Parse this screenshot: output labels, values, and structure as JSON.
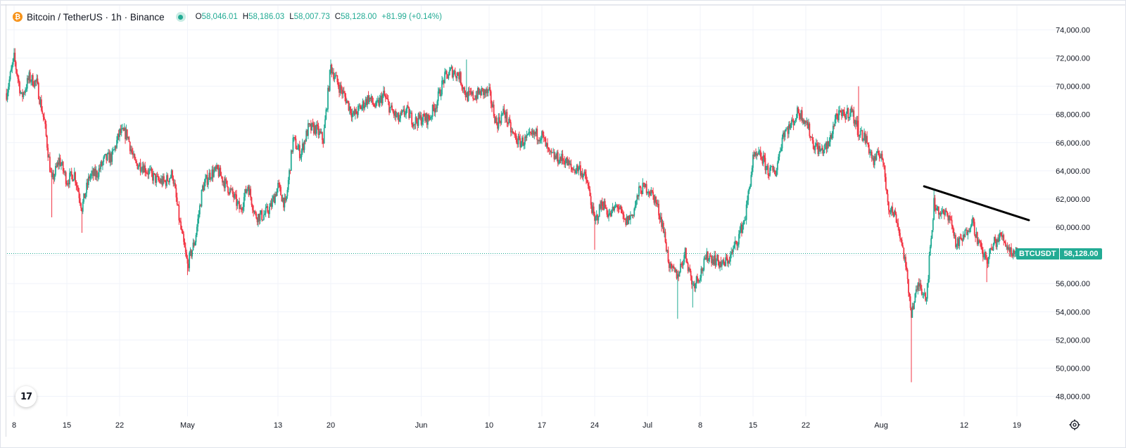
{
  "header": {
    "symbol": "Bitcoin / TetherUS · 1h · Binance",
    "coin_glyph": "₿",
    "ohlc": {
      "open_label": "O",
      "open": "58,046.01",
      "high_label": "H",
      "high": "58,186.03",
      "low_label": "L",
      "low": "58,007.73",
      "close_label": "C",
      "close": "58,128.00",
      "change": "+81.99 (+0.14%)"
    }
  },
  "price_tag": {
    "name": "BTCUSDT",
    "value": "58,128.00"
  },
  "colors": {
    "up": "#22ab94",
    "down": "#f23645",
    "accent": "#22ab94",
    "grid": "#f0f3fa"
  },
  "icons": {
    "logo": "tradingview-logo-icon",
    "settings": "settings-gear-icon",
    "coin": "bitcoin-icon"
  },
  "logo_text": "17",
  "chart_data": {
    "type": "candlestick",
    "title": "Bitcoin / TetherUS · 1h · Binance",
    "ylim": [
      47000,
      75000
    ],
    "y_ticks": [
      {
        "value": 74000,
        "label": "74,000.00"
      },
      {
        "value": 72000,
        "label": "72,000.00"
      },
      {
        "value": 70000,
        "label": "70,000.00"
      },
      {
        "value": 68000,
        "label": "68,000.00"
      },
      {
        "value": 66000,
        "label": "66,000.00"
      },
      {
        "value": 64000,
        "label": "64,000.00"
      },
      {
        "value": 62000,
        "label": "62,000.00"
      },
      {
        "value": 60000,
        "label": "60,000.00"
      },
      {
        "value": 58000,
        "label": "58,000.00"
      },
      {
        "value": 56000,
        "label": "56,000.00"
      },
      {
        "value": 54000,
        "label": "54,000.00"
      },
      {
        "value": 52000,
        "label": "52,000.00"
      },
      {
        "value": 50000,
        "label": "50,000.00"
      },
      {
        "value": 48000,
        "label": "48,000.00"
      }
    ],
    "x_ticks": [
      {
        "date": "2024-04-08",
        "label": "8"
      },
      {
        "date": "2024-04-15",
        "label": "15"
      },
      {
        "date": "2024-04-22",
        "label": "22"
      },
      {
        "date": "2024-05-01",
        "label": "May"
      },
      {
        "date": "2024-05-13",
        "label": "13"
      },
      {
        "date": "2024-05-20",
        "label": "20"
      },
      {
        "date": "2024-06-01",
        "label": "Jun"
      },
      {
        "date": "2024-06-10",
        "label": "10"
      },
      {
        "date": "2024-06-17",
        "label": "17"
      },
      {
        "date": "2024-06-24",
        "label": "24"
      },
      {
        "date": "2024-07-01",
        "label": "Jul"
      },
      {
        "date": "2024-07-08",
        "label": "8"
      },
      {
        "date": "2024-07-15",
        "label": "15"
      },
      {
        "date": "2024-07-22",
        "label": "22"
      },
      {
        "date": "2024-08-01",
        "label": "Aug"
      },
      {
        "date": "2024-08-12",
        "label": "12"
      },
      {
        "date": "2024-08-19",
        "label": "19"
      }
    ],
    "x_end": "2024-08-21",
    "last_price": 58128,
    "trendline": [
      {
        "date": "2024-08-08",
        "value": 62900
      },
      {
        "date": "2024-08-19",
        "value": 60500
      }
    ],
    "series": [
      {
        "values": [
          [
            "2024-04-07",
            69500
          ],
          [
            "2024-04-08",
            72000
          ],
          [
            "2024-04-09",
            69200
          ],
          [
            "2024-04-10",
            70600
          ],
          [
            "2024-04-11",
            70200
          ],
          [
            "2024-04-12",
            67500
          ],
          [
            "2024-04-13",
            63200
          ],
          [
            "2024-04-14",
            64800
          ],
          [
            "2024-04-15",
            63300
          ],
          [
            "2024-04-16",
            63800
          ],
          [
            "2024-04-17",
            61400
          ],
          [
            "2024-04-18",
            63600
          ],
          [
            "2024-04-19",
            63800
          ],
          [
            "2024-04-20",
            64800
          ],
          [
            "2024-04-21",
            65000
          ],
          [
            "2024-04-22",
            66700
          ],
          [
            "2024-04-23",
            66600
          ],
          [
            "2024-04-24",
            64500
          ],
          [
            "2024-04-25",
            64400
          ],
          [
            "2024-04-26",
            63800
          ],
          [
            "2024-04-27",
            63300
          ],
          [
            "2024-04-28",
            63200
          ],
          [
            "2024-04-29",
            63800
          ],
          [
            "2024-04-30",
            60200
          ],
          [
            "2024-05-01",
            57300
          ],
          [
            "2024-05-02",
            59100
          ],
          [
            "2024-05-03",
            62800
          ],
          [
            "2024-05-04",
            63800
          ],
          [
            "2024-05-05",
            64000
          ],
          [
            "2024-05-06",
            63100
          ],
          [
            "2024-05-07",
            62300
          ],
          [
            "2024-05-08",
            61200
          ],
          [
            "2024-05-09",
            63000
          ],
          [
            "2024-05-10",
            60800
          ],
          [
            "2024-05-11",
            60800
          ],
          [
            "2024-05-12",
            61400
          ],
          [
            "2024-05-13",
            62900
          ],
          [
            "2024-05-14",
            61500
          ],
          [
            "2024-05-15",
            66200
          ],
          [
            "2024-05-16",
            65200
          ],
          [
            "2024-05-17",
            67000
          ],
          [
            "2024-05-18",
            67000
          ],
          [
            "2024-05-19",
            66200
          ],
          [
            "2024-05-20",
            71400
          ],
          [
            "2024-05-21",
            70100
          ],
          [
            "2024-05-22",
            69100
          ],
          [
            "2024-05-23",
            67900
          ],
          [
            "2024-05-24",
            68500
          ],
          [
            "2024-05-25",
            69200
          ],
          [
            "2024-05-26",
            68500
          ],
          [
            "2024-05-27",
            69400
          ],
          [
            "2024-05-28",
            68300
          ],
          [
            "2024-05-29",
            67600
          ],
          [
            "2024-05-30",
            68300
          ],
          [
            "2024-05-31",
            67500
          ],
          [
            "2024-06-01",
            67700
          ],
          [
            "2024-06-02",
            67700
          ],
          [
            "2024-06-03",
            68800
          ],
          [
            "2024-06-04",
            70500
          ],
          [
            "2024-06-05",
            71100
          ],
          [
            "2024-06-06",
            70800
          ],
          [
            "2024-06-07",
            69300
          ],
          [
            "2024-06-08",
            69300
          ],
          [
            "2024-06-09",
            69600
          ],
          [
            "2024-06-10",
            69500
          ],
          [
            "2024-06-11",
            67300
          ],
          [
            "2024-06-12",
            68200
          ],
          [
            "2024-06-13",
            66700
          ],
          [
            "2024-06-14",
            66000
          ],
          [
            "2024-06-15",
            66200
          ],
          [
            "2024-06-16",
            66600
          ],
          [
            "2024-06-17",
            66500
          ],
          [
            "2024-06-18",
            65100
          ],
          [
            "2024-06-19",
            64900
          ],
          [
            "2024-06-20",
            64800
          ],
          [
            "2024-06-21",
            64100
          ],
          [
            "2024-06-22",
            64200
          ],
          [
            "2024-06-23",
            63200
          ],
          [
            "2024-06-24",
            60300
          ],
          [
            "2024-06-25",
            61800
          ],
          [
            "2024-06-26",
            60800
          ],
          [
            "2024-06-27",
            61600
          ],
          [
            "2024-06-28",
            60300
          ],
          [
            "2024-06-29",
            60900
          ],
          [
            "2024-06-30",
            62700
          ],
          [
            "2024-07-01",
            62800
          ],
          [
            "2024-07-02",
            62000
          ],
          [
            "2024-07-03",
            60200
          ],
          [
            "2024-07-04",
            57000
          ],
          [
            "2024-07-05",
            56600
          ],
          [
            "2024-07-06",
            58200
          ],
          [
            "2024-07-07",
            55900
          ],
          [
            "2024-07-08",
            56700
          ],
          [
            "2024-07-09",
            58000
          ],
          [
            "2024-07-10",
            57700
          ],
          [
            "2024-07-11",
            57300
          ],
          [
            "2024-07-12",
            57900
          ],
          [
            "2024-07-13",
            59200
          ],
          [
            "2024-07-14",
            60800
          ],
          [
            "2024-07-15",
            64800
          ],
          [
            "2024-07-16",
            65100
          ],
          [
            "2024-07-17",
            64000
          ],
          [
            "2024-07-18",
            63900
          ],
          [
            "2024-07-19",
            66700
          ],
          [
            "2024-07-20",
            67200
          ],
          [
            "2024-07-21",
            68200
          ],
          [
            "2024-07-22",
            67600
          ],
          [
            "2024-07-23",
            65900
          ],
          [
            "2024-07-24",
            65400
          ],
          [
            "2024-07-25",
            65800
          ],
          [
            "2024-07-26",
            67900
          ],
          [
            "2024-07-27",
            67900
          ],
          [
            "2024-07-28",
            68300
          ],
          [
            "2024-07-29",
            66800
          ],
          [
            "2024-07-30",
            66200
          ],
          [
            "2024-07-31",
            64600
          ],
          [
            "2024-08-01",
            65400
          ],
          [
            "2024-08-02",
            61500
          ],
          [
            "2024-08-03",
            60700
          ],
          [
            "2024-08-04",
            58100
          ],
          [
            "2024-08-05",
            54000
          ],
          [
            "2024-08-06",
            56000
          ],
          [
            "2024-08-07",
            55100
          ],
          [
            "2024-08-08",
            61700
          ],
          [
            "2024-08-09",
            60900
          ],
          [
            "2024-08-10",
            60900
          ],
          [
            "2024-08-11",
            58700
          ],
          [
            "2024-08-12",
            59300
          ],
          [
            "2024-08-13",
            60600
          ],
          [
            "2024-08-14",
            58700
          ],
          [
            "2024-08-15",
            57600
          ],
          [
            "2024-08-16",
            58900
          ],
          [
            "2024-08-17",
            59400
          ],
          [
            "2024-08-18",
            58400
          ],
          [
            "2024-08-19",
            58128
          ]
        ]
      }
    ],
    "extremes": [
      [
        "2024-04-08",
        72700,
        "high"
      ],
      [
        "2024-04-13",
        60700,
        "low"
      ],
      [
        "2024-04-17",
        59600,
        "low"
      ],
      [
        "2024-05-01",
        56600,
        "low"
      ],
      [
        "2024-05-20",
        71900,
        "high"
      ],
      [
        "2024-06-07",
        71900,
        "high"
      ],
      [
        "2024-06-24",
        58400,
        "low"
      ],
      [
        "2024-07-05",
        53500,
        "low"
      ],
      [
        "2024-07-07",
        54300,
        "low"
      ],
      [
        "2024-07-29",
        70000,
        "high"
      ],
      [
        "2024-08-05",
        49000,
        "low"
      ],
      [
        "2024-08-08",
        62700,
        "high"
      ],
      [
        "2024-08-15",
        56100,
        "low"
      ]
    ]
  }
}
